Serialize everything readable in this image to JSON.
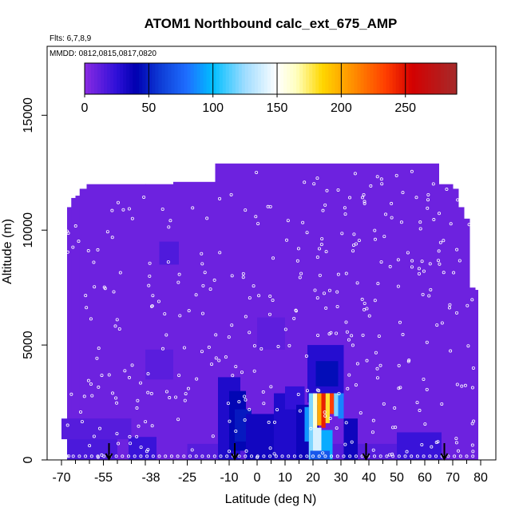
{
  "chart_data": {
    "type": "heatmap",
    "title": "ATOM1 Northbound calc_ext_675_AMP",
    "annotations": [
      "Flts: 6,7,8,9",
      "MMDD: 0812,0815,0817,0820"
    ],
    "xlabel": "Latitude (deg N)",
    "ylabel": "Altitude (m)",
    "xlim": [
      -70,
      80
    ],
    "ylim": [
      0,
      18000
    ],
    "x_ticks": [
      -70,
      -55,
      -40,
      -25,
      -10,
      0,
      10,
      20,
      30,
      40,
      50,
      60,
      70,
      80
    ],
    "x_tick_labels": [
      "-70",
      "-55",
      "-25",
      "-10",
      "0",
      "10",
      "20",
      "30",
      "40",
      "50",
      "60",
      "70",
      "80"
    ],
    "x_minor_ticks": [
      -65,
      -60,
      -50,
      -45,
      -35,
      -30,
      -20,
      -15,
      -5,
      5,
      15,
      25,
      35,
      45,
      55,
      65,
      75
    ],
    "extra_x_tick_label": {
      "value": -38,
      "label": "-38"
    },
    "y_ticks": [
      0,
      5000,
      10000,
      15000
    ],
    "y_tick_labels": [
      "0",
      "5000",
      "10000",
      "15000"
    ],
    "colorbar": {
      "range": [
        0,
        290
      ],
      "ticks": [
        0,
        50,
        100,
        150,
        200,
        250
      ],
      "tick_labels": [
        "0",
        "50",
        "100",
        "150",
        "200",
        "250"
      ],
      "colors": [
        [
          0,
          "#8a2be2"
        ],
        [
          25,
          "#2e10d8"
        ],
        [
          40,
          "#0000b0"
        ],
        [
          60,
          "#0f3fd8"
        ],
        [
          80,
          "#1e6fff"
        ],
        [
          100,
          "#00bfff"
        ],
        [
          125,
          "#9fdcff"
        ],
        [
          150,
          "#ffffff"
        ],
        [
          165,
          "#ffffbf"
        ],
        [
          185,
          "#ffd700"
        ],
        [
          210,
          "#ff8c00"
        ],
        [
          235,
          "#ff3d00"
        ],
        [
          255,
          "#d40000"
        ],
        [
          290,
          "#a52a2a"
        ]
      ]
    },
    "column_tops": [
      [
        -68,
        -66.5,
        11000
      ],
      [
        -66.5,
        -65,
        11400
      ],
      [
        -65,
        -63.5,
        11500
      ],
      [
        -63.5,
        -61,
        11800
      ],
      [
        -61,
        -40,
        12000
      ],
      [
        -40,
        -30,
        12000
      ],
      [
        -30,
        -15,
        12100
      ],
      [
        -15,
        65,
        12900
      ],
      [
        65,
        70,
        12000
      ],
      [
        70,
        72,
        11800
      ],
      [
        72,
        74,
        11000
      ],
      [
        74,
        76,
        10500
      ],
      [
        76,
        78,
        7500
      ],
      [
        78,
        79,
        7400
      ]
    ],
    "background_value": 8,
    "cells": [
      {
        "x": [
          -25,
          65
        ],
        "y": [
          0,
          700
        ],
        "v": 14
      },
      {
        "x": [
          -68,
          -50
        ],
        "y": [
          0,
          900
        ],
        "v": 17
      },
      {
        "x": [
          -46,
          -36
        ],
        "y": [
          0,
          1000
        ],
        "v": 22
      },
      {
        "x": [
          -14,
          -6
        ],
        "y": [
          0,
          3600
        ],
        "v": 30
      },
      {
        "x": [
          -10,
          -4
        ],
        "y": [
          400,
          3000
        ],
        "v": 42
      },
      {
        "x": [
          -8,
          -2
        ],
        "y": [
          800,
          2200
        ],
        "v": 48
      },
      {
        "x": [
          -4,
          6
        ],
        "y": [
          0,
          2000
        ],
        "v": 34
      },
      {
        "x": [
          6,
          14
        ],
        "y": [
          0,
          2900
        ],
        "v": 30
      },
      {
        "x": [
          10,
          17
        ],
        "y": [
          2200,
          3200
        ],
        "v": 24
      },
      {
        "x": [
          14,
          22
        ],
        "y": [
          0,
          2400
        ],
        "v": 36
      },
      {
        "x": [
          18,
          31
        ],
        "y": [
          2500,
          5000
        ],
        "v": 28
      },
      {
        "x": [
          21,
          29
        ],
        "y": [
          3200,
          4300
        ],
        "v": 44
      },
      {
        "x": [
          17,
          18.5
        ],
        "y": [
          800,
          2300
        ],
        "v": 90
      },
      {
        "x": [
          18.5,
          20
        ],
        "y": [
          0,
          2900
        ],
        "v": 120
      },
      {
        "x": [
          20,
          21.5
        ],
        "y": [
          0,
          2900
        ],
        "v": 160
      },
      {
        "x": [
          21.5,
          23
        ],
        "y": [
          1500,
          2900
        ],
        "v": 200
      },
      {
        "x": [
          23,
          24.5
        ],
        "y": [
          1400,
          2900
        ],
        "v": 245
      },
      {
        "x": [
          24.5,
          26
        ],
        "y": [
          1600,
          2900
        ],
        "v": 180
      },
      {
        "x": [
          26,
          27.5
        ],
        "y": [
          2000,
          2900
        ],
        "v": 235
      },
      {
        "x": [
          27.5,
          29
        ],
        "y": [
          1900,
          2900
        ],
        "v": 120
      },
      {
        "x": [
          29,
          31
        ],
        "y": [
          1800,
          2900
        ],
        "v": 85
      },
      {
        "x": [
          20,
          23
        ],
        "y": [
          0,
          1400
        ],
        "v": 140
      },
      {
        "x": [
          23,
          27
        ],
        "y": [
          0,
          1300
        ],
        "v": 95
      },
      {
        "x": [
          31,
          36
        ],
        "y": [
          0,
          1800
        ],
        "v": 35
      },
      {
        "x": [
          19,
          26
        ],
        "y": [
          0,
          400
        ],
        "v": 70
      },
      {
        "x": [
          50,
          66
        ],
        "y": [
          0,
          1200
        ],
        "v": 22
      },
      {
        "x": [
          -70,
          -45
        ],
        "y": [
          900,
          1800
        ],
        "v": 14
      },
      {
        "x": [
          -40,
          -30
        ],
        "y": [
          3500,
          4800
        ],
        "v": 13
      },
      {
        "x": [
          -35,
          -28
        ],
        "y": [
          8500,
          9500
        ],
        "v": 16
      },
      {
        "x": [
          0,
          10
        ],
        "y": [
          4800,
          6200
        ],
        "v": 12
      }
    ],
    "arrows_x": [
      -53,
      -8,
      39,
      67
    ]
  }
}
